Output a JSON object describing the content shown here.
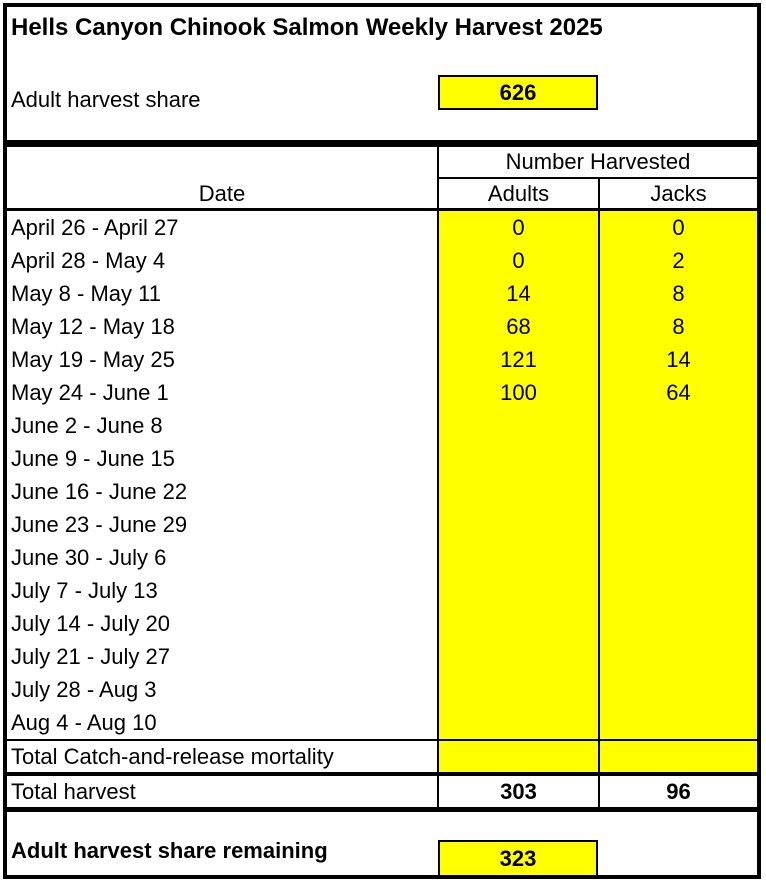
{
  "title": "Hells Canyon Chinook Salmon Weekly Harvest 2025",
  "summary": {
    "share_label": "Adult harvest share",
    "share_value": "626"
  },
  "table": {
    "group_header": "Number Harvested",
    "col_date": "Date",
    "col_adults": "Adults",
    "col_jacks": "Jacks",
    "rows": [
      {
        "date": "April 26 - April 27",
        "adults": "0",
        "jacks": "0"
      },
      {
        "date": "April 28 - May 4",
        "adults": "0",
        "jacks": "2"
      },
      {
        "date": "May 8 - May 11",
        "adults": "14",
        "jacks": "8"
      },
      {
        "date": "May 12 - May 18",
        "adults": "68",
        "jacks": "8"
      },
      {
        "date": "May 19 - May 25",
        "adults": "121",
        "jacks": "14"
      },
      {
        "date": "May 24 - June 1",
        "adults": "100",
        "jacks": "64"
      },
      {
        "date": "June 2 - June 8",
        "adults": "",
        "jacks": ""
      },
      {
        "date": "June 9 - June 15",
        "adults": "",
        "jacks": ""
      },
      {
        "date": "June 16 - June 22",
        "adults": "",
        "jacks": ""
      },
      {
        "date": "June 23 - June 29",
        "adults": "",
        "jacks": ""
      },
      {
        "date": "June 30 - July 6",
        "adults": "",
        "jacks": ""
      },
      {
        "date": "July 7 - July 13",
        "adults": "",
        "jacks": ""
      },
      {
        "date": "July 14 - July 20",
        "adults": "",
        "jacks": ""
      },
      {
        "date": "July 21 - July 27",
        "adults": "",
        "jacks": ""
      },
      {
        "date": "July 28 - Aug 3",
        "adults": "",
        "jacks": ""
      },
      {
        "date": "Aug 4 - Aug 10",
        "adults": "",
        "jacks": ""
      }
    ],
    "mortality_label": "Total Catch-and-release mortality",
    "mortality_adults": "",
    "mortality_jacks": "",
    "total_label": "Total harvest",
    "total_adults": "303",
    "total_jacks": "96"
  },
  "footer": {
    "remaining_label": "Adult harvest share remaining",
    "remaining_value": "323"
  },
  "colors": {
    "highlight": "#FFFF00",
    "border": "#000000",
    "text": "#000000",
    "background": "#FFFFFF"
  }
}
